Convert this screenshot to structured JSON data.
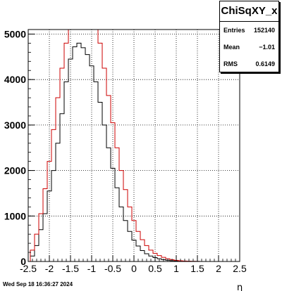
{
  "chart_data": {
    "type": "histogram",
    "title": "",
    "xlabel": "η",
    "ylabel": "",
    "xlim": [
      -2.5,
      2.5
    ],
    "ylim": [
      0,
      5100
    ],
    "xticks": [
      "-2.5",
      "-2",
      "-1.5",
      "-1",
      "-0.5",
      "0",
      "0.5",
      "1",
      "1.5",
      "2",
      "2.5"
    ],
    "yticks": [
      "0",
      "1000",
      "2000",
      "3000",
      "4000",
      "5000"
    ],
    "grid": true,
    "series": [
      {
        "color": "#000000",
        "x": [
          -2.4,
          -2.3,
          -2.2,
          -2.1,
          -2.0,
          -1.9,
          -1.8,
          -1.7,
          -1.6,
          -1.5,
          -1.4,
          -1.3,
          -1.2,
          -1.1,
          -1.0,
          -0.9,
          -0.8,
          -0.7,
          -0.6,
          -0.5,
          -0.4,
          -0.3,
          -0.2,
          -0.1,
          0.0,
          0.1,
          0.2,
          0.3,
          0.4,
          0.5,
          0.6,
          0.7,
          0.8,
          0.9,
          1.0,
          1.1,
          1.2,
          1.3,
          1.4,
          1.5
        ],
        "y": [
          120,
          350,
          700,
          1050,
          1550,
          2000,
          2600,
          3250,
          3950,
          4450,
          4720,
          4800,
          4700,
          4550,
          4300,
          3950,
          3500,
          3000,
          2500,
          2050,
          1620,
          1200,
          900,
          660,
          470,
          340,
          240,
          170,
          120,
          85,
          60,
          40,
          28,
          18,
          12,
          8,
          6,
          4,
          2,
          1
        ]
      },
      {
        "color": "#cc0000",
        "x": [
          -2.4,
          -2.3,
          -2.2,
          -2.1,
          -2.0,
          -1.9,
          -1.8,
          -1.7,
          -1.6,
          -1.5,
          -1.4,
          -1.3,
          -1.2,
          -1.1,
          -1.0,
          -0.9,
          -0.8,
          -0.7,
          -0.6,
          -0.5,
          -0.4,
          -0.3,
          -0.2,
          -0.1,
          0.0,
          0.1,
          0.2,
          0.3,
          0.4,
          0.5,
          0.6,
          0.7,
          0.8,
          0.9,
          1.0,
          1.1,
          1.2,
          1.3,
          1.4,
          1.5
        ],
        "y": [
          250,
          600,
          1050,
          1600,
          2200,
          2900,
          3600,
          4250,
          4800,
          5100,
          5200,
          5200,
          5200,
          5200,
          5200,
          5200,
          4800,
          4250,
          3650,
          3050,
          2500,
          2000,
          1580,
          1200,
          900,
          660,
          480,
          350,
          250,
          180,
          130,
          90,
          60,
          40,
          25,
          16,
          10,
          6,
          3,
          1
        ]
      }
    ]
  },
  "stats": {
    "title": "ChiSqXY_x",
    "rows": [
      {
        "label": "Entries",
        "value": "152140"
      },
      {
        "label": "Mean",
        "value": "−1.01"
      },
      {
        "label": "RMS",
        "value": "0.6149"
      }
    ]
  },
  "timestamp": "Wed Sep 18 16:36:27 2024"
}
